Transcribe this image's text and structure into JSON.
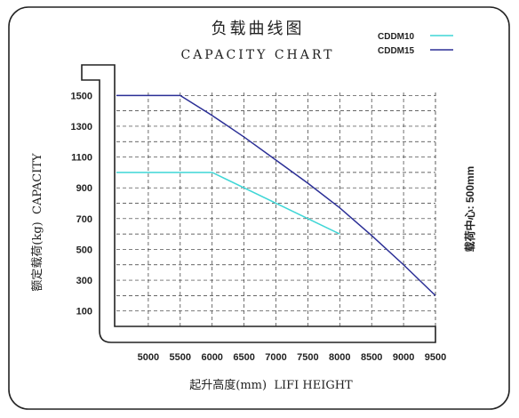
{
  "chart_data": {
    "type": "line",
    "title": "负载曲线图",
    "subtitle": "CAPACITY CHART",
    "xlabel": "起升高度(mm)  LIFI HEIGHT",
    "ylabel": "额定载荷(kg)  CAPACITY",
    "side_note": "载荷中心: 500mm",
    "xlim": [
      4500,
      9500
    ],
    "ylim": [
      0,
      1600
    ],
    "x_ticks": [
      5000,
      5500,
      6000,
      6500,
      7000,
      7500,
      8000,
      8500,
      9000,
      9500
    ],
    "y_ticks": [
      100,
      300,
      500,
      700,
      900,
      1100,
      1300,
      1500
    ],
    "grid": true,
    "legend_position": "top-right",
    "series": [
      {
        "name": "CDDM10",
        "color": "#3fd6d6",
        "x": [
          4500,
          6000,
          8000
        ],
        "y": [
          1000,
          1000,
          600
        ]
      },
      {
        "name": "CDDM15",
        "color": "#2b2f96",
        "x": [
          4500,
          5500,
          6000,
          6500,
          7000,
          7500,
          8000,
          8500,
          9000,
          9500
        ],
        "y": [
          1500,
          1500,
          1370,
          1230,
          1080,
          930,
          770,
          590,
          400,
          200
        ]
      }
    ]
  }
}
